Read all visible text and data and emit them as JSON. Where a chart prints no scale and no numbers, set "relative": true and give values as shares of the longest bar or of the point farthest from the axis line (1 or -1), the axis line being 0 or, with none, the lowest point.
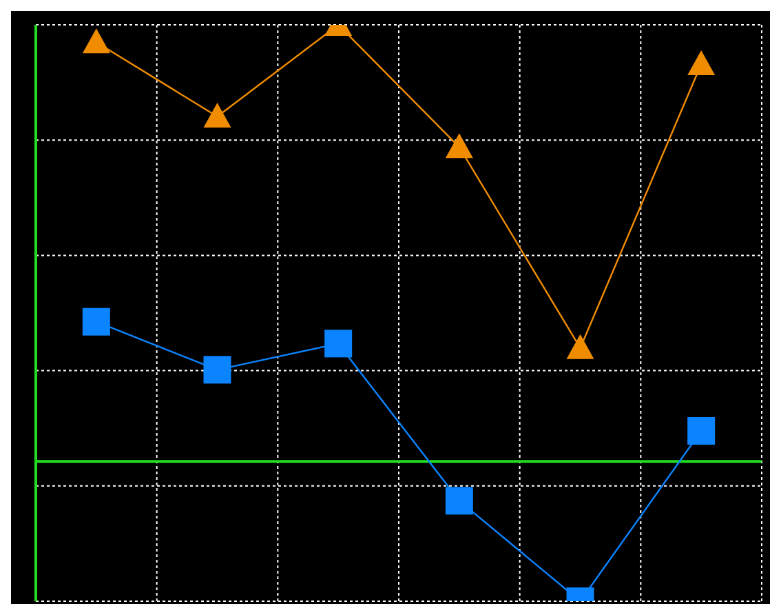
{
  "chart_data": {
    "type": "line",
    "relative": true,
    "categories": [
      null,
      null,
      null,
      null,
      null,
      null
    ],
    "grid": true,
    "legend": false,
    "ref_lines": [
      {
        "axis": "y",
        "value": 0,
        "color": "#22dd22"
      }
    ],
    "series": [
      {
        "color": "#f08c00",
        "marker": "triangle",
        "values": [
          0.96,
          0.79,
          1,
          0.72,
          0.26,
          0.91
        ]
      },
      {
        "color": "#0a84ff",
        "marker": "square",
        "values": [
          0.32,
          0.21,
          0.27,
          -0.09,
          -0.32,
          0.07
        ]
      }
    ]
  }
}
